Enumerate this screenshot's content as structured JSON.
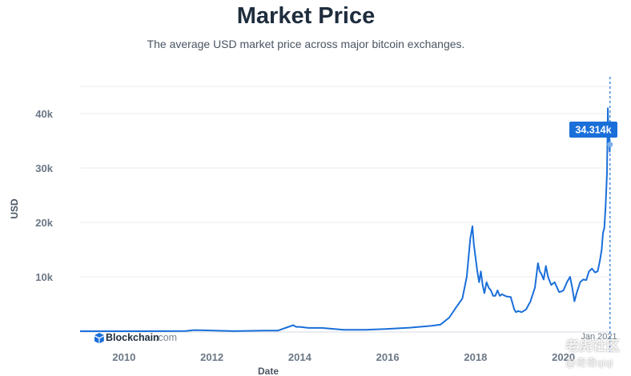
{
  "header": {
    "title": "Market Price",
    "subtitle": "The average USD market price across major bitcoin exchanges."
  },
  "tooltip": {
    "value": "34.314k",
    "date": "Jan 2021"
  },
  "brand": {
    "name": "Blockchain",
    "suffix": ".com"
  },
  "watermark": {
    "line1": "老虎社区",
    "line2": "@奇奇qiqi"
  },
  "colors": {
    "line": "#1a6fd9",
    "grid": "#e8ebef",
    "tooltip_bg": "#1a6fd9",
    "text": "#1e2d3d"
  },
  "chart_data": {
    "type": "line",
    "title": "Market Price",
    "subtitle": "The average USD market price across major bitcoin exchanges.",
    "xlabel": "Date",
    "ylabel": "USD",
    "xlim": [
      2009.0,
      2021.1
    ],
    "ylim": [
      0,
      45000
    ],
    "x_ticks": [
      {
        "v": 2010,
        "label": "2010"
      },
      {
        "v": 2012,
        "label": "2012"
      },
      {
        "v": 2014,
        "label": "2014"
      },
      {
        "v": 2016,
        "label": "2016"
      },
      {
        "v": 2018,
        "label": "2018"
      },
      {
        "v": 2020,
        "label": "2020"
      }
    ],
    "y_ticks": [
      {
        "v": 10000,
        "label": "10k"
      },
      {
        "v": 20000,
        "label": "20k"
      },
      {
        "v": 30000,
        "label": "30k"
      },
      {
        "v": 40000,
        "label": "40k"
      }
    ],
    "grid": true,
    "series": [
      {
        "x": [
          2009.0,
          2010.5,
          2011.4,
          2011.6,
          2012.5,
          2013.2,
          2013.5,
          2013.85,
          2013.92,
          2014.0,
          2014.2,
          2014.5,
          2015.0,
          2015.5,
          2016.0,
          2016.5,
          2017.0,
          2017.2,
          2017.4,
          2017.55,
          2017.7,
          2017.8,
          2017.88,
          2017.93,
          2017.96,
          2018.0,
          2018.04,
          2018.08,
          2018.12,
          2018.16,
          2018.2,
          2018.25,
          2018.3,
          2018.35,
          2018.4,
          2018.45,
          2018.5,
          2018.55,
          2018.6,
          2018.7,
          2018.8,
          2018.88,
          2018.92,
          2018.97,
          2019.05,
          2019.15,
          2019.25,
          2019.35,
          2019.42,
          2019.46,
          2019.5,
          2019.55,
          2019.6,
          2019.65,
          2019.72,
          2019.8,
          2019.9,
          2019.95,
          2020.0,
          2020.08,
          2020.15,
          2020.2,
          2020.25,
          2020.3,
          2020.38,
          2020.45,
          2020.52,
          2020.58,
          2020.65,
          2020.72,
          2020.78,
          2020.83,
          2020.87,
          2020.9,
          2020.93,
          2020.96,
          2020.99,
          2021.01,
          2021.03,
          2021.04,
          2021.05,
          2021.06
        ],
        "y": [
          0,
          0,
          30,
          200,
          10,
          100,
          100,
          1100,
          800,
          800,
          600,
          600,
          250,
          250,
          420,
          650,
          1000,
          1200,
          2500,
          4300,
          6000,
          10000,
          17000,
          19300,
          16000,
          13500,
          11000,
          9000,
          11000,
          8500,
          7000,
          9000,
          8000,
          7500,
          6500,
          6500,
          7500,
          6500,
          6800,
          6400,
          6300,
          4000,
          3500,
          3700,
          3500,
          4000,
          5500,
          8000,
          12500,
          11000,
          10500,
          9500,
          12000,
          10000,
          8500,
          9000,
          7200,
          7300,
          7500,
          9000,
          10000,
          8000,
          5500,
          7000,
          9000,
          9500,
          9400,
          11000,
          11500,
          10800,
          11000,
          13000,
          15000,
          18000,
          19000,
          23000,
          29000,
          41000,
          34000,
          37000,
          33000,
          34314
        ]
      }
    ]
  }
}
